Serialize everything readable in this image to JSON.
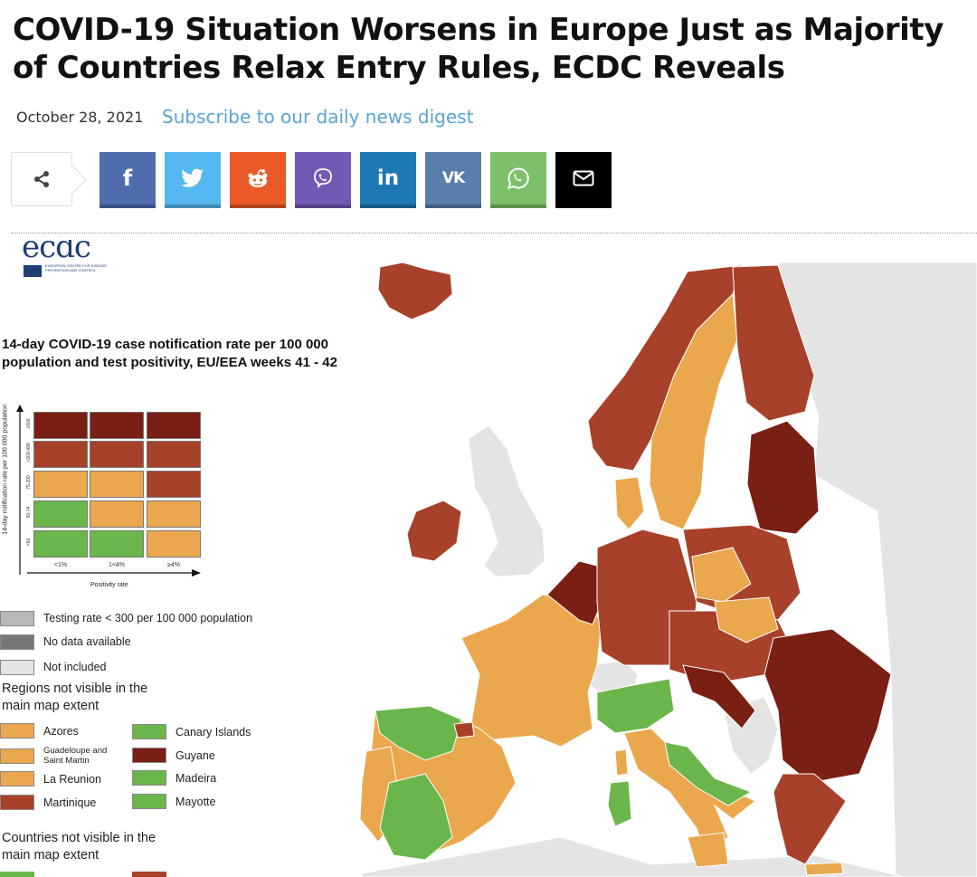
{
  "article": {
    "title": "COVID-19 Situation Worsens in Europe Just as Majority of Countries Relax Entry Rules, ECDC Reveals",
    "date": "October 28, 2021",
    "subscribe_label": "Subscribe to our daily news digest"
  },
  "share": {
    "toggle_icon": "share-icon",
    "buttons": [
      {
        "name": "facebook",
        "icon": "facebook-icon",
        "glyph": "f",
        "color": "#4f6dad"
      },
      {
        "name": "twitter",
        "icon": "twitter-icon",
        "glyph": "",
        "color": "#55b8ee"
      },
      {
        "name": "reddit",
        "icon": "reddit-icon",
        "glyph": "",
        "color": "#ea5a28"
      },
      {
        "name": "viber",
        "icon": "viber-icon",
        "glyph": "",
        "color": "#7359b4"
      },
      {
        "name": "linkedin",
        "icon": "linkedin-icon",
        "glyph": "in",
        "color": "#1d78b4"
      },
      {
        "name": "vk",
        "icon": "vk-icon",
        "glyph": "VK",
        "color": "#5a7eac"
      },
      {
        "name": "whatsapp",
        "icon": "whatsapp-icon",
        "glyph": "",
        "color": "#7dc06b"
      },
      {
        "name": "email",
        "icon": "mail-icon",
        "glyph": "",
        "color": "#000000"
      }
    ]
  },
  "figure": {
    "logo_text": "ecdc",
    "logo_subtext": "EUROPEAN CENTRE FOR DISEASE PREVENTION AND CONTROL",
    "title": "14-day COVID-19 case notification rate per 100 000 population and test positivity, EU/EEA weeks 41 - 42",
    "y_axis_label": "14-day notification rate per 100 000 population",
    "x_axis_label": "Positivity rate",
    "matrix_rows": [
      "≥500",
      ">200-499",
      "75-200",
      "50-74",
      "<50"
    ],
    "matrix_cols": [
      "<1%",
      "1<4%",
      "≥4%"
    ],
    "matrix_colors": [
      [
        "#7a1f13",
        "#7a1f13",
        "#7a1f13"
      ],
      [
        "#a8412a",
        "#a8412a",
        "#a8412a"
      ],
      [
        "#eba74d",
        "#eba74d",
        "#a8412a"
      ],
      [
        "#6ab64a",
        "#eba74d",
        "#eba74d"
      ],
      [
        "#6ab64a",
        "#6ab64a",
        "#eba74d"
      ]
    ],
    "status_legend": [
      {
        "label": "Testing rate < 300 per 100 000 population",
        "color": "#b8b8b8"
      },
      {
        "label": "No data available",
        "color": "#777777"
      },
      {
        "label": "Not included",
        "color": "#e4e4e4"
      }
    ],
    "regions_heading": "Regions not visible in the main map extent",
    "regions": [
      {
        "label": "Azores",
        "color": "#eba74d"
      },
      {
        "label": "Canary Islands",
        "color": "#6ab64a"
      },
      {
        "label": "Guadeloupe and Saint Martin",
        "color": "#eba74d"
      },
      {
        "label": "Guyane",
        "color": "#7a1f13"
      },
      {
        "label": "La Reunion",
        "color": "#eba74d"
      },
      {
        "label": "Madeira",
        "color": "#6ab64a"
      },
      {
        "label": "Martinique",
        "color": "#a8412a"
      },
      {
        "label": "Mayotte",
        "color": "#6ab64a"
      }
    ],
    "countries_heading": "Countries not visible in the main map extent",
    "colors": {
      "very_high": "#7a1f13",
      "high": "#a8412a",
      "moderate": "#eba74d",
      "low": "#6ab64a",
      "not_included": "#e4e4e4",
      "sea": "#ffffff"
    }
  }
}
